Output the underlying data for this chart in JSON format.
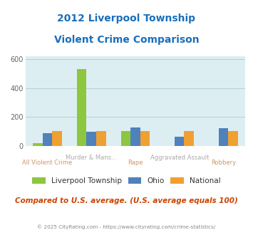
{
  "title_line1": "2012 Liverpool Township",
  "title_line2": "Violent Crime Comparison",
  "x_labels_top": [
    "",
    "Murder & Mans...",
    "",
    "Aggravated Assault",
    ""
  ],
  "x_labels_bottom": [
    "All Violent Crime",
    "",
    "Rape",
    "",
    "Robbery"
  ],
  "series": {
    "Liverpool Township": [
      20,
      530,
      100,
      0,
      0
    ],
    "Ohio": [
      85,
      95,
      125,
      60,
      120
    ],
    "National": [
      100,
      100,
      100,
      100,
      100
    ]
  },
  "colors": {
    "Liverpool Township": "#8dc63f",
    "Ohio": "#4f81bd",
    "National": "#f0a030"
  },
  "ylim": [
    0,
    620
  ],
  "yticks": [
    0,
    200,
    400,
    600
  ],
  "plot_bg": "#ddeef2",
  "title_color": "#1a6fbb",
  "footer_text": "© 2025 CityRating.com - https://www.cityrating.com/crime-statistics/",
  "subtitle_text": "Compared to U.S. average. (U.S. average equals 100)",
  "subtitle_color": "#cc4400",
  "footer_color": "#888888",
  "grid_color": "#b0c8cc",
  "xlabel_top_color": "#aaaaaa",
  "xlabel_bottom_color": "#cc9966"
}
